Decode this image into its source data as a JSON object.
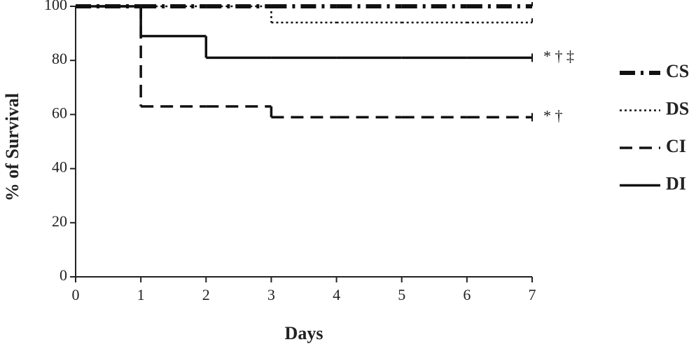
{
  "chart_data": {
    "type": "step",
    "xlabel": "Days",
    "ylabel": "% of Survival",
    "x": [
      0,
      1,
      2,
      3,
      4,
      5,
      6,
      7
    ],
    "series": [
      {
        "name": "CS",
        "color": "#111111",
        "dash": "dashdot",
        "width": 6,
        "values": [
          100,
          100,
          100,
          100,
          100,
          100,
          100,
          100
        ]
      },
      {
        "name": "DS",
        "color": "#111111",
        "dash": "dotted",
        "width": 2.5,
        "values": [
          100,
          100,
          100,
          94,
          94,
          94,
          94,
          94
        ]
      },
      {
        "name": "CI",
        "color": "#111111",
        "dash": "dashed",
        "width": 3.5,
        "values": [
          100,
          63,
          63,
          59,
          59,
          59,
          59,
          59
        ],
        "annotation": "* †"
      },
      {
        "name": "DI",
        "color": "#111111",
        "dash": "solid",
        "width": 3.5,
        "values": [
          100,
          89,
          81,
          81,
          81,
          81,
          81,
          81
        ],
        "annotation": "* † ‡"
      }
    ],
    "xlim": [
      0,
      7
    ],
    "xticks": [
      0,
      1,
      2,
      3,
      4,
      5,
      6,
      7
    ],
    "ylim": [
      0,
      100
    ],
    "yticks": [
      0,
      20,
      40,
      60,
      80,
      100
    ],
    "legend": "right"
  }
}
